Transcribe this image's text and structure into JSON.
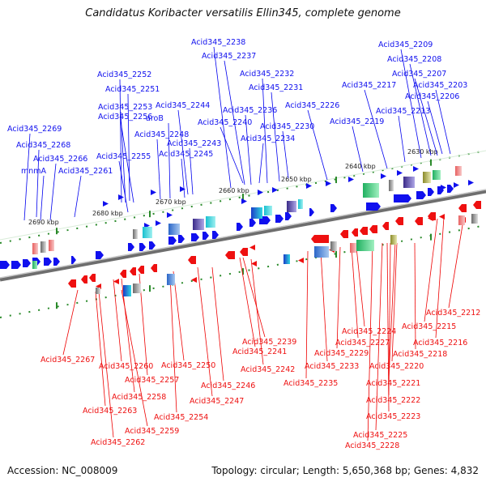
{
  "title": "Candidatus Koribacter versatilis Ellin345, complete genome",
  "accession": "Accession: NC_008009",
  "summary": "Topology: circular; Length: 5,650,368 bp; Genes: 4,832",
  "scale_labels": [
    "2690 kbp",
    "2680 kbp",
    "2670 kbp",
    "2660 kbp",
    "2650 kbp",
    "2640 kbp",
    "2630 kbp"
  ],
  "colors": {
    "forward": "#1010ee",
    "reverse": "#ee1010",
    "backbone": "#808080",
    "tick": "#2a8a2a"
  },
  "top_labels": [
    "Acid345_2269",
    "Acid345_2268",
    "mnmA",
    "Acid345_2266",
    "Acid345_2261",
    "Acid345_2252",
    "Acid345_2251",
    "Acid345_2253",
    "Acid345_2256",
    "Acid345_2255",
    "aroB",
    "Acid345_2248",
    "Acid345_2243",
    "Acid345_2245",
    "Acid345_2244",
    "Acid345_2238",
    "Acid345_2237",
    "Acid345_2240",
    "Acid345_2236",
    "Acid345_2232",
    "Acid345_2231",
    "Acid345_2234",
    "Acid345_2230",
    "Acid345_2226",
    "Acid345_2219",
    "Acid345_2217",
    "Acid345_2209",
    "Acid345_2208",
    "Acid345_2207",
    "Acid345_2203",
    "Acid345_2206",
    "Acid345_2213"
  ],
  "bottom_labels": [
    "Acid345_2212",
    "Acid345_2215",
    "Acid345_2216",
    "Acid345_2218",
    "Acid345_2220",
    "Acid345_2221",
    "Acid345_2222",
    "Acid345_2223",
    "Acid345_2225",
    "Acid345_2228",
    "Acid345_2224",
    "Acid345_2227",
    "Acid345_2229",
    "Acid345_2233",
    "Acid345_2235",
    "Acid345_2239",
    "Acid345_2241",
    "Acid345_2242",
    "Acid345_2246",
    "Acid345_2247",
    "Acid345_2250",
    "Acid345_2257",
    "Acid345_2254",
    "Acid345_2258",
    "Acid345_2260",
    "Acid345_2267",
    "Acid345_2263",
    "Acid345_2259",
    "Acid345_2262"
  ]
}
